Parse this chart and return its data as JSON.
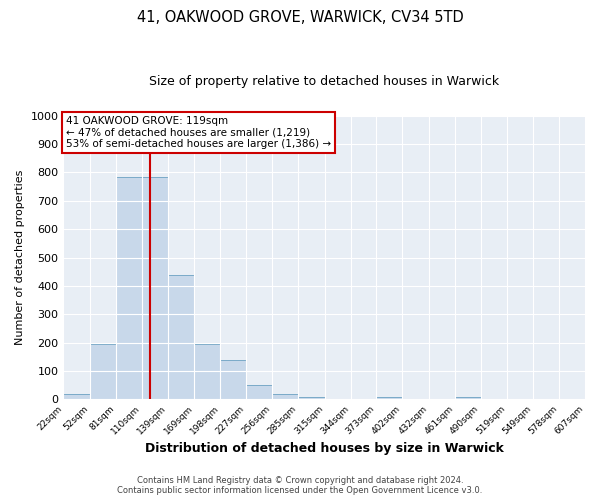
{
  "title": "41, OAKWOOD GROVE, WARWICK, CV34 5TD",
  "subtitle": "Size of property relative to detached houses in Warwick",
  "xlabel": "Distribution of detached houses by size in Warwick",
  "ylabel": "Number of detached properties",
  "bar_color": "#c8d8ea",
  "bar_edgecolor": "#7aaac8",
  "bg_color": "#e8eef5",
  "grid_color": "#ffffff",
  "bins": [
    22,
    52,
    81,
    110,
    139,
    169,
    198,
    227,
    256,
    285,
    315,
    344,
    373,
    402,
    432,
    461,
    490,
    519,
    549,
    578,
    607
  ],
  "bin_labels": [
    "22sqm",
    "52sqm",
    "81sqm",
    "110sqm",
    "139sqm",
    "169sqm",
    "198sqm",
    "227sqm",
    "256sqm",
    "285sqm",
    "315sqm",
    "344sqm",
    "373sqm",
    "402sqm",
    "432sqm",
    "461sqm",
    "490sqm",
    "519sqm",
    "549sqm",
    "578sqm",
    "607sqm"
  ],
  "values": [
    20,
    195,
    785,
    785,
    440,
    195,
    140,
    50,
    20,
    10,
    0,
    0,
    10,
    0,
    0,
    10,
    0,
    0,
    0,
    0
  ],
  "property_size": 119,
  "vline_color": "#cc0000",
  "annotation_line1": "41 OAKWOOD GROVE: 119sqm",
  "annotation_line2": "← 47% of detached houses are smaller (1,219)",
  "annotation_line3": "53% of semi-detached houses are larger (1,386) →",
  "annotation_box_edgecolor": "#cc0000",
  "annotation_box_facecolor": "#ffffff",
  "ylim": [
    0,
    1000
  ],
  "yticks": [
    0,
    100,
    200,
    300,
    400,
    500,
    600,
    700,
    800,
    900,
    1000
  ],
  "fig_facecolor": "#ffffff",
  "footer_line1": "Contains HM Land Registry data © Crown copyright and database right 2024.",
  "footer_line2": "Contains public sector information licensed under the Open Government Licence v3.0."
}
